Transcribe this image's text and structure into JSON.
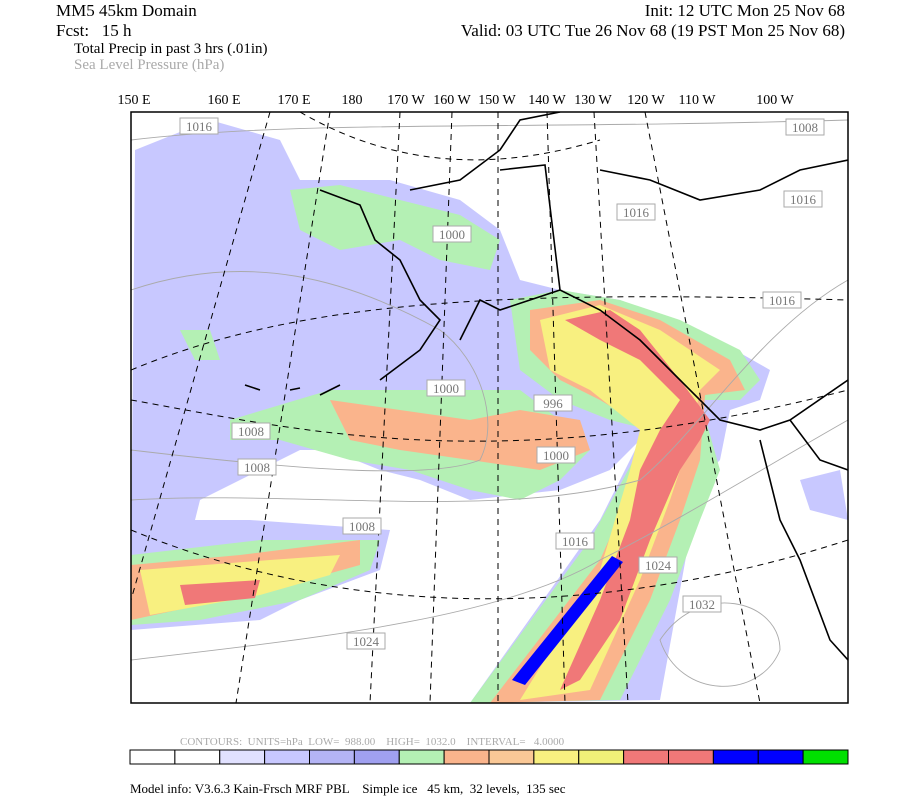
{
  "header": {
    "domain": "MM5 45km Domain",
    "init": "Init: 12 UTC Mon 25 Nov 68",
    "forecast": "Fcst:   15 h",
    "valid": "Valid: 03 UTC Tue 26 Nov 68 (19 PST Mon 25 Nov 68)",
    "field_shaded": "Total Precip in past 3 hrs (.01in)",
    "field_contour": "Sea Level Pressure (hPa)"
  },
  "longitude_labels": [
    "150 E",
    "160 E",
    "170 E",
    "180",
    "170 W",
    "160 W",
    "150 W",
    "140 W",
    "130 W",
    "120 W",
    "110 W",
    "100 W"
  ],
  "contour_labels": [
    "1016",
    "1008",
    "1016",
    "1016",
    "1000",
    "1016",
    "1000",
    "996",
    "1000",
    "1008",
    "1008",
    "1008",
    "1016",
    "1024",
    "1032",
    "1024"
  ],
  "footer": {
    "contour_info": "CONTOURS:  UNITS=hPa  LOW=  988.00    HIGH=  1032.0    INTERVAL=   4.0000",
    "model_info": "Model info: V3.6.3 Kain-Frsch MRF PBL    Simple ice   45 km,  32 levels,  135 sec"
  }
}
